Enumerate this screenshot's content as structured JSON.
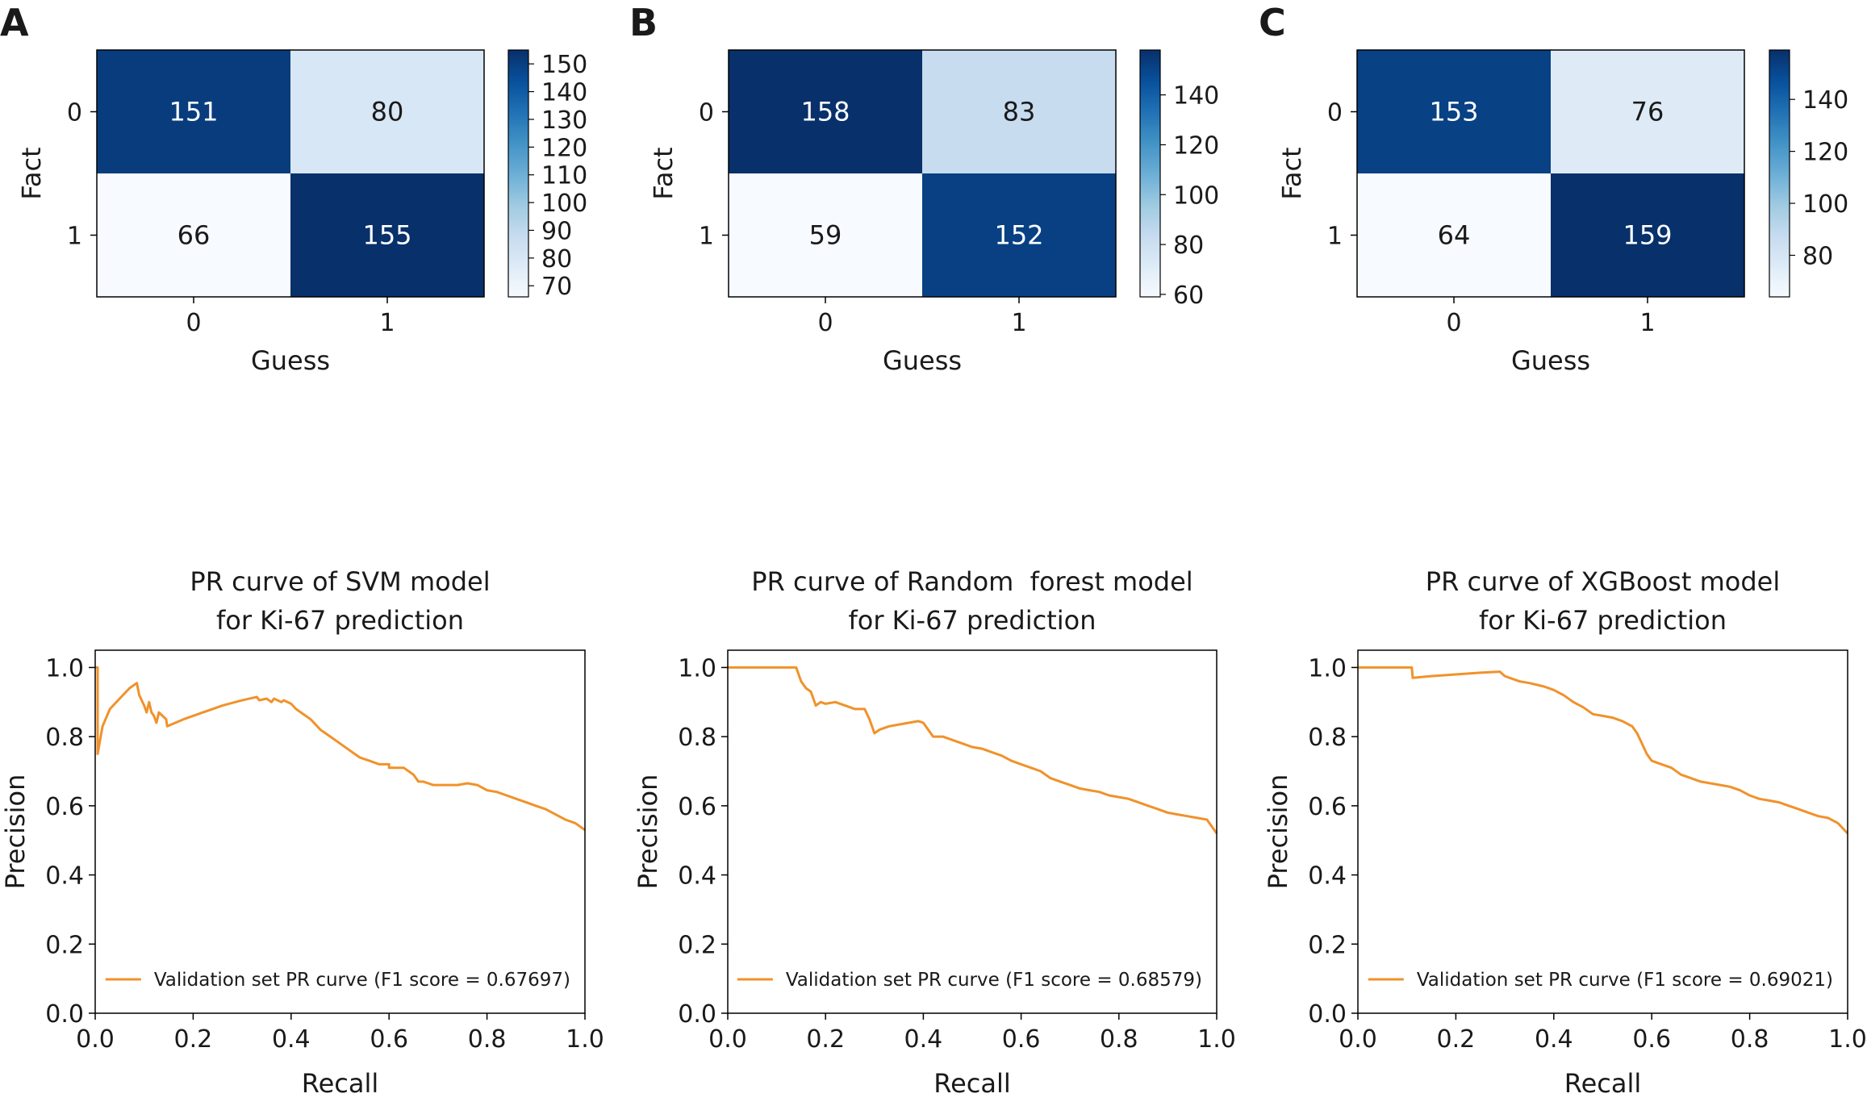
{
  "panels": [
    "A",
    "B",
    "C"
  ],
  "chart_data": [
    {
      "type": "heatmap",
      "panel": "A",
      "xlabel": "Guess",
      "ylabel": "Fact",
      "x_categories": [
        "0",
        "1"
      ],
      "y_categories": [
        "0",
        "1"
      ],
      "values": [
        [
          151,
          80
        ],
        [
          66,
          155
        ]
      ],
      "colormap": "Blues",
      "colorbar_range": [
        66,
        155
      ],
      "colorbar_ticks": [
        70,
        80,
        90,
        100,
        110,
        120,
        130,
        140,
        150
      ]
    },
    {
      "type": "heatmap",
      "panel": "B",
      "xlabel": "Guess",
      "ylabel": "Fact",
      "x_categories": [
        "0",
        "1"
      ],
      "y_categories": [
        "0",
        "1"
      ],
      "values": [
        [
          158,
          83
        ],
        [
          59,
          152
        ]
      ],
      "colormap": "Blues",
      "colorbar_range": [
        59,
        158
      ],
      "colorbar_ticks": [
        60,
        80,
        100,
        120,
        140
      ]
    },
    {
      "type": "heatmap",
      "panel": "C",
      "xlabel": "Guess",
      "ylabel": "Fact",
      "x_categories": [
        "0",
        "1"
      ],
      "y_categories": [
        "0",
        "1"
      ],
      "values": [
        [
          153,
          76
        ],
        [
          64,
          159
        ]
      ],
      "colormap": "Blues",
      "colorbar_range": [
        64,
        159
      ],
      "colorbar_ticks": [
        80,
        100,
        120,
        140
      ]
    },
    {
      "type": "line",
      "panel": "A",
      "title": [
        "PR curve of SVM model",
        "for Ki-67 prediction"
      ],
      "xlabel": "Recall",
      "ylabel": "Precision",
      "xlim": [
        0,
        1
      ],
      "ylim": [
        0,
        1.05
      ],
      "xticks": [
        "0.0",
        "0.2",
        "0.4",
        "0.6",
        "0.8",
        "1.0"
      ],
      "yticks": [
        "0.0",
        "0.2",
        "0.4",
        "0.6",
        "0.8",
        "1.0"
      ],
      "legend_position": "lower-right",
      "series": [
        {
          "name": "Validation set PR curve (F1 score = 0.67697)",
          "color": "#f0922b",
          "x": [
            0,
            0.005,
            0.005,
            0.015,
            0.03,
            0.05,
            0.07,
            0.085,
            0.09,
            0.1,
            0.105,
            0.11,
            0.115,
            0.12,
            0.125,
            0.13,
            0.145,
            0.147,
            0.18,
            0.22,
            0.26,
            0.3,
            0.33,
            0.335,
            0.35,
            0.36,
            0.365,
            0.38,
            0.385,
            0.4,
            0.41,
            0.42,
            0.44,
            0.46,
            0.48,
            0.5,
            0.52,
            0.54,
            0.56,
            0.58,
            0.6,
            0.6,
            0.63,
            0.65,
            0.66,
            0.67,
            0.68,
            0.69,
            0.7,
            0.72,
            0.74,
            0.76,
            0.78,
            0.8,
            0.82,
            0.84,
            0.86,
            0.88,
            0.9,
            0.92,
            0.94,
            0.96,
            0.98,
            1.0
          ],
          "y": [
            1.0,
            1.0,
            0.75,
            0.83,
            0.88,
            0.91,
            0.94,
            0.955,
            0.92,
            0.89,
            0.87,
            0.9,
            0.87,
            0.86,
            0.84,
            0.87,
            0.85,
            0.83,
            0.85,
            0.87,
            0.89,
            0.905,
            0.915,
            0.905,
            0.91,
            0.9,
            0.91,
            0.9,
            0.905,
            0.895,
            0.88,
            0.87,
            0.85,
            0.82,
            0.8,
            0.78,
            0.76,
            0.74,
            0.73,
            0.72,
            0.72,
            0.71,
            0.71,
            0.69,
            0.67,
            0.67,
            0.665,
            0.66,
            0.66,
            0.66,
            0.66,
            0.665,
            0.66,
            0.645,
            0.64,
            0.63,
            0.62,
            0.61,
            0.6,
            0.59,
            0.575,
            0.56,
            0.55,
            0.53
          ]
        }
      ]
    },
    {
      "type": "line",
      "panel": "B",
      "title": [
        "PR curve of Random  forest model",
        "for Ki-67 prediction"
      ],
      "xlabel": "Recall",
      "ylabel": "Precision",
      "xlim": [
        0,
        1
      ],
      "ylim": [
        0,
        1.05
      ],
      "xticks": [
        "0.0",
        "0.2",
        "0.4",
        "0.6",
        "0.8",
        "1.0"
      ],
      "yticks": [
        "0.0",
        "0.2",
        "0.4",
        "0.6",
        "0.8",
        "1.0"
      ],
      "legend_position": "lower-right",
      "series": [
        {
          "name": "Validation set PR curve (F1 score = 0.68579)",
          "color": "#f0922b",
          "x": [
            0,
            0.14,
            0.15,
            0.16,
            0.17,
            0.18,
            0.19,
            0.2,
            0.22,
            0.24,
            0.26,
            0.28,
            0.29,
            0.3,
            0.31,
            0.33,
            0.35,
            0.37,
            0.39,
            0.4,
            0.41,
            0.42,
            0.44,
            0.46,
            0.48,
            0.5,
            0.52,
            0.54,
            0.56,
            0.58,
            0.6,
            0.62,
            0.64,
            0.66,
            0.68,
            0.7,
            0.72,
            0.74,
            0.76,
            0.78,
            0.8,
            0.82,
            0.84,
            0.86,
            0.88,
            0.9,
            0.92,
            0.94,
            0.96,
            0.98,
            1.0
          ],
          "y": [
            1.0,
            1.0,
            0.96,
            0.94,
            0.93,
            0.89,
            0.9,
            0.895,
            0.9,
            0.89,
            0.88,
            0.88,
            0.85,
            0.81,
            0.82,
            0.83,
            0.835,
            0.84,
            0.845,
            0.84,
            0.82,
            0.8,
            0.8,
            0.79,
            0.78,
            0.77,
            0.765,
            0.755,
            0.745,
            0.73,
            0.72,
            0.71,
            0.7,
            0.68,
            0.67,
            0.66,
            0.65,
            0.645,
            0.64,
            0.63,
            0.625,
            0.62,
            0.61,
            0.6,
            0.59,
            0.58,
            0.575,
            0.57,
            0.565,
            0.56,
            0.52
          ]
        }
      ]
    },
    {
      "type": "line",
      "panel": "C",
      "title": [
        "PR curve of XGBoost model",
        "for Ki-67 prediction"
      ],
      "xlabel": "Recall",
      "ylabel": "Precision",
      "xlim": [
        0,
        1
      ],
      "ylim": [
        0,
        1.05
      ],
      "xticks": [
        "0.0",
        "0.2",
        "0.4",
        "0.6",
        "0.8",
        "1.0"
      ],
      "yticks": [
        "0.0",
        "0.2",
        "0.4",
        "0.6",
        "0.8",
        "1.0"
      ],
      "legend_position": "lower-right",
      "series": [
        {
          "name": "Validation set PR curve (F1 score = 0.69021)",
          "color": "#f0922b",
          "x": [
            0,
            0.11,
            0.112,
            0.15,
            0.2,
            0.25,
            0.29,
            0.3,
            0.31,
            0.33,
            0.35,
            0.38,
            0.4,
            0.42,
            0.44,
            0.46,
            0.48,
            0.5,
            0.52,
            0.54,
            0.56,
            0.57,
            0.58,
            0.59,
            0.6,
            0.62,
            0.64,
            0.66,
            0.68,
            0.7,
            0.72,
            0.74,
            0.76,
            0.78,
            0.8,
            0.82,
            0.84,
            0.86,
            0.88,
            0.9,
            0.92,
            0.94,
            0.96,
            0.98,
            1.0
          ],
          "y": [
            1.0,
            1.0,
            0.97,
            0.975,
            0.98,
            0.985,
            0.988,
            0.975,
            0.97,
            0.96,
            0.955,
            0.945,
            0.935,
            0.92,
            0.9,
            0.885,
            0.865,
            0.86,
            0.855,
            0.845,
            0.83,
            0.81,
            0.78,
            0.75,
            0.73,
            0.72,
            0.71,
            0.69,
            0.68,
            0.67,
            0.665,
            0.66,
            0.655,
            0.645,
            0.63,
            0.62,
            0.615,
            0.61,
            0.6,
            0.59,
            0.58,
            0.57,
            0.565,
            0.55,
            0.52
          ]
        }
      ]
    }
  ]
}
